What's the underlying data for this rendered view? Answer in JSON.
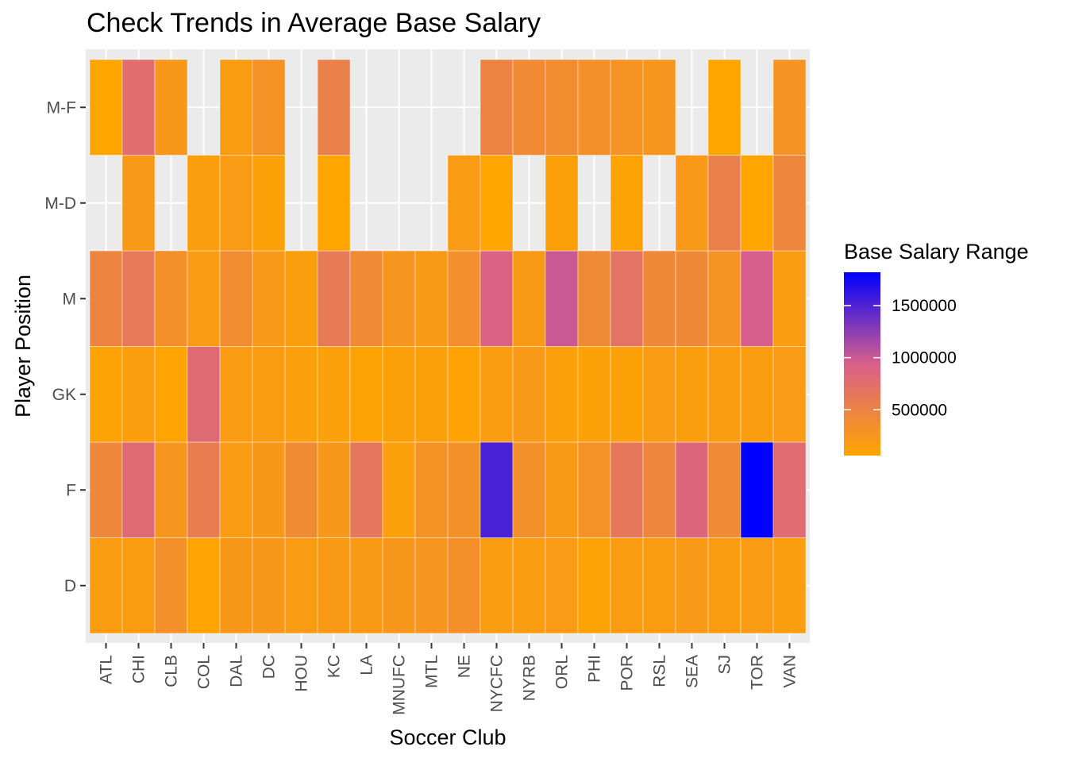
{
  "chart_data": {
    "type": "heatmap",
    "title": "Check Trends in Average Base Salary",
    "xlabel": "Soccer Club",
    "ylabel": "Player Position",
    "x_categories": [
      "ATL",
      "CHI",
      "CLB",
      "COL",
      "DAL",
      "DC",
      "HOU",
      "KC",
      "LA",
      "MNUFC",
      "MTL",
      "NE",
      "NYCFC",
      "NYRB",
      "ORL",
      "PHI",
      "POR",
      "RSL",
      "SEA",
      "SJ",
      "TOR",
      "VAN"
    ],
    "y_categories": [
      "D",
      "F",
      "GK",
      "M",
      "M-D",
      "M-F"
    ],
    "legend": {
      "title": "Base Salary Range",
      "breaks": [
        500000,
        1000000,
        1500000
      ],
      "break_labels": [
        "500000",
        "1000000",
        "1500000"
      ],
      "limits": [
        60000,
        1820000
      ],
      "position": "right",
      "low_color": "#FFA500",
      "high_color": "#0000FF"
    },
    "values": {
      "D": [
        170000,
        170000,
        330000,
        70000,
        220000,
        230000,
        180000,
        200000,
        200000,
        240000,
        260000,
        330000,
        160000,
        160000,
        190000,
        90000,
        170000,
        170000,
        210000,
        170000,
        180000,
        150000
      ],
      "F": [
        430000,
        800000,
        250000,
        570000,
        180000,
        220000,
        390000,
        230000,
        650000,
        130000,
        300000,
        320000,
        1520000,
        330000,
        200000,
        310000,
        640000,
        450000,
        850000,
        400000,
        1820000,
        780000
      ],
      "GK": [
        90000,
        150000,
        70000,
        800000,
        180000,
        170000,
        140000,
        130000,
        90000,
        120000,
        130000,
        80000,
        160000,
        210000,
        130000,
        110000,
        110000,
        180000,
        150000,
        160000,
        160000,
        190000
      ],
      "M": [
        470000,
        620000,
        330000,
        180000,
        370000,
        210000,
        150000,
        600000,
        400000,
        250000,
        200000,
        340000,
        900000,
        200000,
        1000000,
        410000,
        700000,
        420000,
        420000,
        280000,
        950000,
        170000
      ],
      "M-D": [
        null,
        210000,
        null,
        150000,
        190000,
        110000,
        null,
        50000,
        null,
        null,
        null,
        190000,
        40000,
        null,
        120000,
        null,
        90000,
        null,
        210000,
        530000,
        50000,
        440000
      ],
      "M-F": [
        60000,
        760000,
        230000,
        null,
        170000,
        300000,
        null,
        530000,
        null,
        null,
        null,
        null,
        490000,
        400000,
        360000,
        330000,
        280000,
        250000,
        null,
        60000,
        null,
        290000
      ]
    }
  }
}
